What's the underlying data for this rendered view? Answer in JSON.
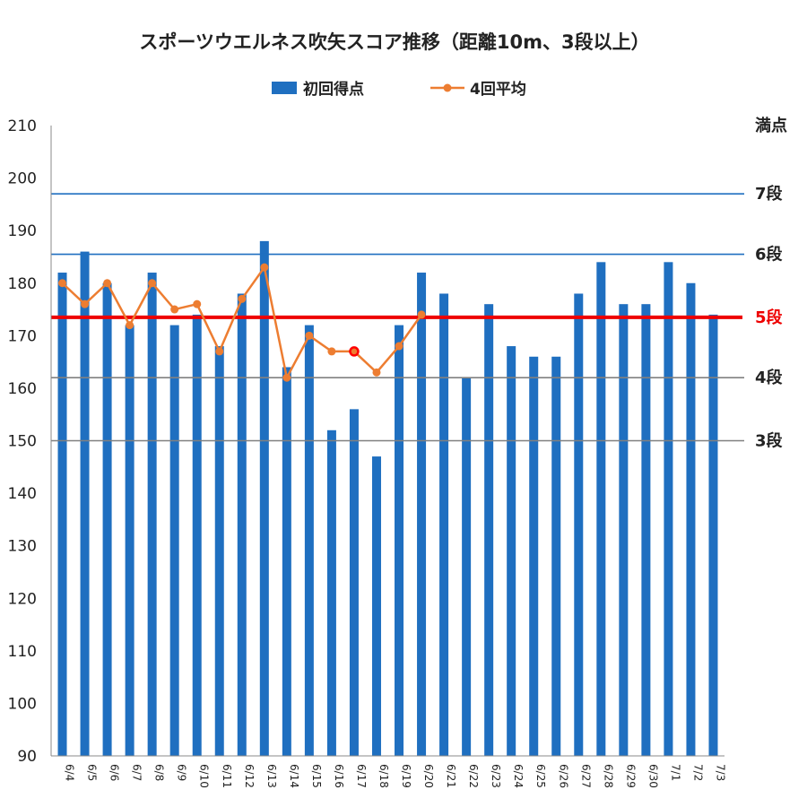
{
  "chart_data": {
    "type": "bar",
    "title": "スポーツウエルネス吹矢スコア推移（距離10m、3段以上）",
    "xlabel": "",
    "ylabel": "",
    "ylim": [
      90,
      210
    ],
    "yticks": [
      90,
      100,
      110,
      120,
      130,
      140,
      150,
      160,
      170,
      180,
      190,
      200,
      210
    ],
    "grid": false,
    "legend_position": "top-center",
    "categories": [
      "6/4",
      "6/5",
      "6/6",
      "6/7",
      "6/8",
      "6/9",
      "6/10",
      "6/11",
      "6/12",
      "6/13",
      "6/14",
      "6/15",
      "6/16",
      "6/17",
      "6/18",
      "6/19",
      "6/20",
      "6/21",
      "6/22",
      "6/23",
      "6/24",
      "6/25",
      "6/26",
      "6/27",
      "6/28",
      "6/29",
      "6/30",
      "7/1",
      "7/2",
      "7/3"
    ],
    "series": [
      {
        "name": "初回得点",
        "type": "bar",
        "color": "#1f6fc0",
        "values": [
          182,
          186,
          180,
          172,
          182,
          172,
          174,
          168,
          178,
          188,
          164,
          172,
          152,
          156,
          147,
          172,
          182,
          178,
          162,
          176,
          168,
          166,
          166,
          178,
          184,
          176,
          176,
          184,
          180,
          174
        ]
      },
      {
        "name": "4回平均",
        "type": "line",
        "color": "#ed7d31",
        "marker": "circle",
        "highlight_marker_color": "#ff0000",
        "highlight_index": 13,
        "values": [
          180,
          176,
          180,
          172,
          180,
          175,
          176,
          167,
          177,
          183,
          162,
          170,
          167,
          167,
          163,
          168,
          174,
          null,
          null,
          null,
          null,
          null,
          null,
          null,
          null,
          null,
          null,
          null,
          null,
          null
        ]
      }
    ],
    "reference_lines": [
      {
        "label": "満点",
        "value": 210,
        "color": "#000000",
        "show_line": false,
        "label_color": "#222222"
      },
      {
        "label": "7段",
        "value": 197,
        "color": "#1f6fc0",
        "show_line": true,
        "label_color": "#222222",
        "weight": "thin"
      },
      {
        "label": "6段",
        "value": 185.5,
        "color": "#1f6fc0",
        "show_line": true,
        "label_color": "#222222",
        "weight": "thin"
      },
      {
        "label": "5段",
        "value": 173.5,
        "color": "#ee0000",
        "show_line": true,
        "label_color": "#ee0000",
        "weight": "thick"
      },
      {
        "label": "4段",
        "value": 162,
        "color": "#808080",
        "show_line": true,
        "label_color": "#222222",
        "weight": "thin"
      },
      {
        "label": "3段",
        "value": 150,
        "color": "#808080",
        "show_line": true,
        "label_color": "#222222",
        "weight": "thin"
      }
    ]
  }
}
